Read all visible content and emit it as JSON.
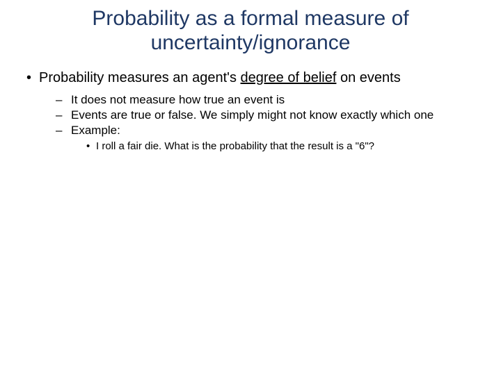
{
  "title": {
    "text": "Probability as a formal measure of uncertainty/ignorance",
    "color": "#1f3864",
    "fontsize": 30
  },
  "body": {
    "color": "#000000",
    "l1_fontsize": 20,
    "l2_fontsize": 17,
    "l3_fontsize": 15,
    "l1_marker": "•",
    "l2_marker": "–",
    "l3_marker": "•",
    "bullet1_prefix": "Probability measures an agent's ",
    "bullet1_underlined": "degree of belief",
    "bullet1_suffix": " on events",
    "sub1": "It does not measure how true an event is",
    "sub2": "Events are true or false. We simply might not know exactly which one",
    "sub3": "Example:",
    "subsub1": "I roll a fair die. What is the probability that the result is a \"6\"?"
  }
}
